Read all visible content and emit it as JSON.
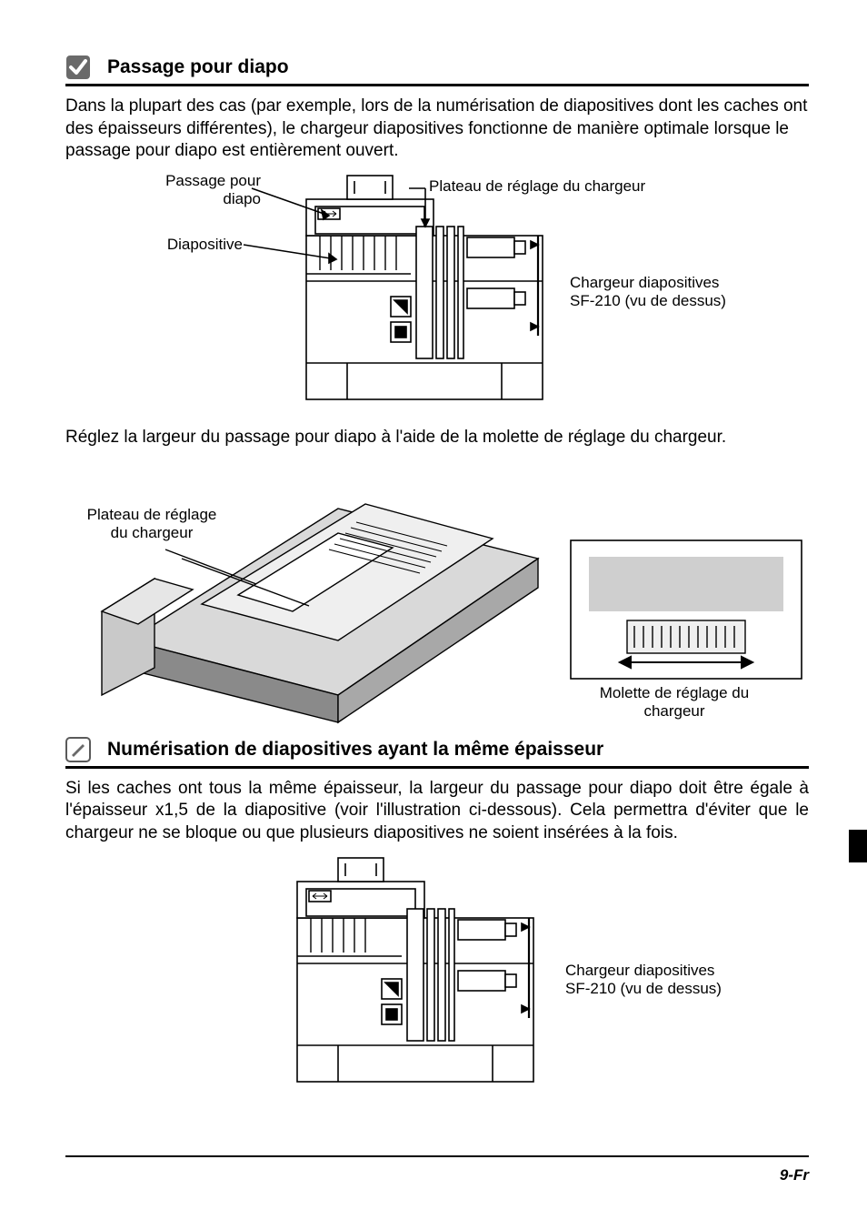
{
  "section1": {
    "title": "Passage pour diapo",
    "para1": "Dans la plupart des cas (par exemple, lors de la numérisation de diapositives dont les caches ont des épaisseurs différentes), le chargeur diapositives fonctionne de manière optimale lorsque le passage pour diapo est entièrement ouvert.",
    "labels": {
      "passage": "Passage pour\ndiapo",
      "diapositive": "Diapositive",
      "plateau": "Plateau de réglage du chargeur",
      "device": "Chargeur diapositives\nSF-210 (vu de dessus)"
    },
    "para2": "Réglez la largeur du passage pour diapo à l'aide de la molette de réglage du chargeur."
  },
  "figure2": {
    "plateau": "Plateau de réglage\ndu chargeur",
    "molette": "Molette de réglage du\nchargeur"
  },
  "section2": {
    "title": "Numérisation de diapositives ayant la même épaisseur",
    "para": "Si les caches ont tous la même épaisseur, la largeur du passage pour diapo doit être égale à l'épaisseur x1,5 de la diapositive (voir l'illustration ci-dessous). Cela permettra d'éviter que le chargeur ne se bloque ou que plusieurs diapositives ne soient insérées à la fois.",
    "device": "Chargeur diapositives\nSF-210 (vu de dessus)"
  },
  "pageNumber": "9-Fr",
  "colors": {
    "stroke": "#000000",
    "fill_light": "#f2f2f2",
    "fill_gray": "#bdbdbd"
  }
}
